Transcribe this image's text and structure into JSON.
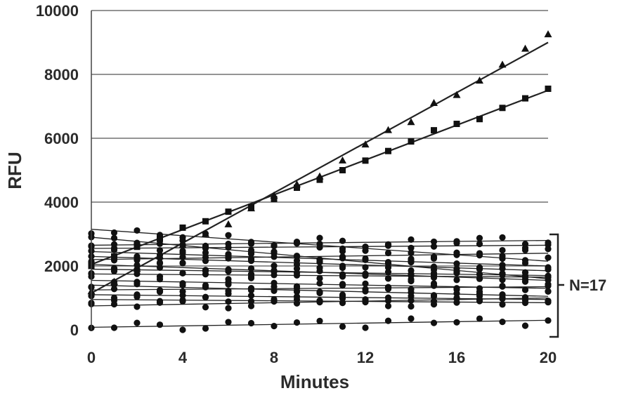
{
  "chart_data": {
    "type": "scatter",
    "title": "",
    "xlabel": "Minutes",
    "ylabel": "RFU",
    "xlim": [
      0,
      20
    ],
    "ylim": [
      0,
      10000
    ],
    "xticks": [
      0,
      4,
      8,
      12,
      16,
      20
    ],
    "yticks": [
      0,
      2000,
      4000,
      6000,
      8000,
      10000
    ],
    "grid": "horizontal",
    "annotation": "N=17",
    "series": [
      {
        "marker": "triangle",
        "x": [
          0,
          1,
          2,
          3,
          4,
          5,
          6,
          7,
          8,
          9,
          10,
          11,
          12,
          13,
          14,
          15,
          16,
          17,
          18,
          19,
          20
        ],
        "y": [
          1200,
          1500,
          1900,
          2300,
          2650,
          3000,
          3300,
          3800,
          4200,
          4550,
          4800,
          5300,
          5800,
          6250,
          6500,
          7100,
          7350,
          7800,
          8300,
          8800,
          9250
        ],
        "fit": [
          1150,
          9000
        ]
      },
      {
        "marker": "square",
        "x": [
          0,
          1,
          2,
          3,
          4,
          5,
          6,
          7,
          8,
          9,
          10,
          11,
          12,
          13,
          14,
          15,
          16,
          17,
          18,
          19,
          20
        ],
        "y": [
          2000,
          2300,
          2600,
          2850,
          3200,
          3400,
          3700,
          3850,
          4100,
          4450,
          4700,
          5000,
          5300,
          5600,
          5900,
          6250,
          6450,
          6600,
          6950,
          7250,
          7550
        ],
        "fit": [
          2050,
          7500
        ]
      },
      {
        "marker": "circle",
        "start": 3150,
        "end": 2150
      },
      {
        "marker": "circle",
        "start": 2900,
        "end": 1600
      },
      {
        "marker": "circle",
        "start": 2650,
        "end": 2800
      },
      {
        "marker": "circle",
        "start": 2550,
        "end": 2650
      },
      {
        "marker": "circle",
        "start": 2450,
        "end": 2000
      },
      {
        "marker": "circle",
        "start": 2300,
        "end": 1850
      },
      {
        "marker": "circle",
        "start": 2200,
        "end": 2400
      },
      {
        "marker": "circle",
        "start": 2050,
        "end": 1550
      },
      {
        "marker": "circle",
        "start": 1900,
        "end": 1700
      },
      {
        "marker": "circle",
        "start": 1750,
        "end": 1650
      },
      {
        "marker": "circle",
        "start": 1550,
        "end": 1300
      },
      {
        "marker": "circle",
        "start": 1400,
        "end": 1050
      },
      {
        "marker": "circle",
        "start": 1250,
        "end": 1350
      },
      {
        "marker": "circle",
        "start": 1100,
        "end": 950
      },
      {
        "marker": "circle",
        "start": 950,
        "end": 850
      },
      {
        "marker": "circle",
        "start": 750,
        "end": 1000
      },
      {
        "marker": "circle",
        "start": 80,
        "end": 300
      }
    ]
  }
}
